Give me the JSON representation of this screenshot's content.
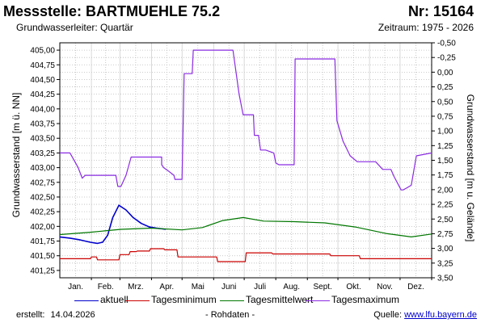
{
  "header": {
    "title": "Messstelle: BARTMUEHLE 75.2",
    "number": "Nr: 15164",
    "aquifer": "Grundwasserleiter: Quartär",
    "period": "Zeitraum: 1975 - 2026"
  },
  "footer": {
    "created_label": "erstellt:",
    "created_date": "14.04.2026",
    "rawdata": "- Rohdaten -",
    "source_label": "Quelle:",
    "source_url": "www.lfu.bayern.de"
  },
  "colors": {
    "aktuell": "#0000cc",
    "min": "#cc0000",
    "mittel": "#007700",
    "max": "#8a2be2",
    "grid": "#bbbbbb"
  },
  "chart_data": {
    "type": "line",
    "xlabel": "",
    "ylabel": "Grundwasserstand [m ü. NN]",
    "ylabel_right": "Grundwasserstand [m u. Gelände]",
    "ylim": [
      401.125,
      405.125
    ],
    "ylim_right": [
      -0.5,
      3.5
    ],
    "xlim_days": [
      0,
      365
    ],
    "month_labels": [
      "Jan.",
      "Feb.",
      "Mrz.",
      "Apr.",
      "Mai",
      "Juni",
      "Juli",
      "Aug.",
      "Sept.",
      "Okt.",
      "Nov.",
      "Dez."
    ],
    "yticks_left": [
      "401,25",
      "401,50",
      "401,75",
      "402,00",
      "402,25",
      "402,50",
      "402,75",
      "403,00",
      "403,25",
      "403,50",
      "403,75",
      "404,00",
      "404,25",
      "404,50",
      "404,75",
      "405,00"
    ],
    "yticks_right": [
      "-0,50",
      "-0,25",
      "0,00",
      "0,25",
      "0,50",
      "0,75",
      "1,00",
      "1,25",
      "1,50",
      "1,75",
      "2,00",
      "2,25",
      "2,50",
      "2,75",
      "3,00",
      "3,25",
      "3,50"
    ],
    "grid": true,
    "legend_position": "bottom",
    "series": [
      {
        "name": "aktuell",
        "x": [
          0,
          10,
          20,
          30,
          37,
          42,
          47,
          52,
          58,
          65,
          72,
          80,
          88,
          95,
          104
        ],
        "y": [
          401.82,
          401.8,
          401.77,
          401.73,
          401.71,
          401.73,
          401.85,
          402.15,
          402.36,
          402.28,
          402.15,
          402.05,
          401.99,
          401.97,
          401.95
        ]
      },
      {
        "name": "Tagesminimum",
        "x": [
          0,
          30,
          31,
          36,
          37,
          58,
          59,
          68,
          69,
          75,
          76,
          88,
          89,
          102,
          103,
          115,
          116,
          154,
          155,
          182,
          183,
          208,
          209,
          265,
          266,
          294,
          295,
          365
        ],
        "y": [
          401.45,
          401.45,
          401.48,
          401.48,
          401.43,
          401.43,
          401.52,
          401.52,
          401.57,
          401.57,
          401.58,
          401.58,
          401.62,
          401.62,
          401.6,
          401.6,
          401.48,
          401.48,
          401.4,
          401.4,
          401.55,
          401.55,
          401.53,
          401.53,
          401.5,
          401.5,
          401.45,
          401.45
        ]
      },
      {
        "name": "Tagesmittelwert",
        "x": [
          0,
          30,
          60,
          90,
          120,
          140,
          160,
          180,
          200,
          230,
          260,
          290,
          320,
          345,
          365
        ],
        "y": [
          401.86,
          401.9,
          401.95,
          401.97,
          401.94,
          401.98,
          402.1,
          402.15,
          402.09,
          402.08,
          402.06,
          401.99,
          401.88,
          401.82,
          401.87
        ]
      },
      {
        "name": "Tagesmaximum",
        "x": [
          0,
          10,
          18,
          22,
          25,
          35,
          55,
          57,
          60,
          65,
          70,
          100,
          100,
          102,
          106,
          112,
          113,
          120,
          122,
          130,
          131,
          140,
          141,
          170,
          176,
          180,
          185,
          190,
          191,
          195,
          197,
          200,
          202,
          210,
          212,
          215,
          230,
          231,
          270,
          272,
          278,
          285,
          292,
          296,
          310,
          317,
          325,
          328,
          335,
          337,
          340,
          345,
          350,
          365
        ],
        "y": [
          403.25,
          403.25,
          403.0,
          402.82,
          402.87,
          402.87,
          402.87,
          402.68,
          402.68,
          402.87,
          403.18,
          403.18,
          403.05,
          403.0,
          402.95,
          402.87,
          402.8,
          402.8,
          404.6,
          404.6,
          405.0,
          405.0,
          405.0,
          405.0,
          404.25,
          403.9,
          403.9,
          403.9,
          403.55,
          403.55,
          403.3,
          403.3,
          403.3,
          403.25,
          403.08,
          403.05,
          403.05,
          404.85,
          404.85,
          403.8,
          403.45,
          403.2,
          403.1,
          403.1,
          403.1,
          402.97,
          402.97,
          402.85,
          402.62,
          402.62,
          402.65,
          402.7,
          403.2,
          403.25
        ]
      }
    ]
  }
}
